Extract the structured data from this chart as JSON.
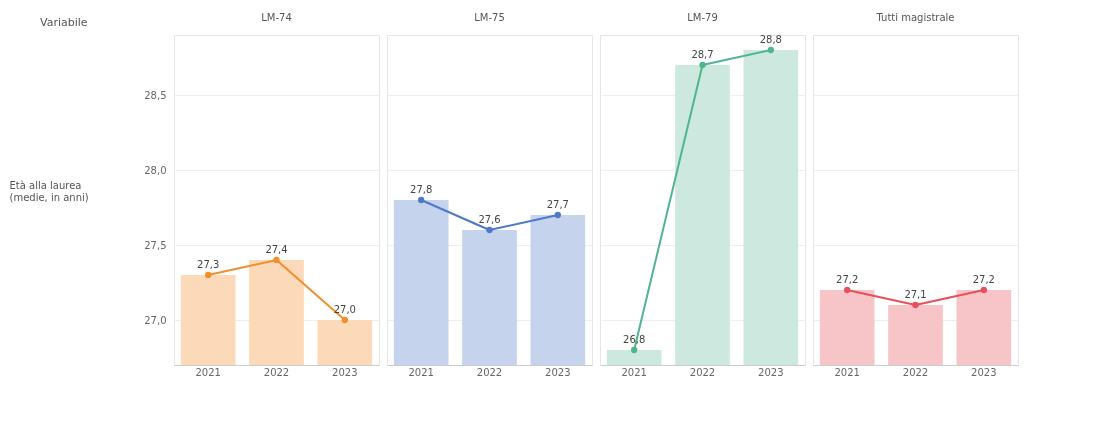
{
  "chart_data": [
    {
      "type": "bar",
      "title": "LM-74",
      "ylabel": "Età alla laurea (medie, in anni)",
      "annotations": [
        "Variabile"
      ],
      "categories": [
        "2021",
        "2022",
        "2023"
      ],
      "ylim": [
        26.7,
        28.9
      ],
      "yticks": [
        {
          "value": 27,
          "label": "27,0"
        },
        {
          "value": 27.5,
          "label": "27,5"
        },
        {
          "value": 28,
          "label": "28,0"
        },
        {
          "value": 28.5,
          "label": "28,5"
        }
      ],
      "grid": "y",
      "marker": "circle",
      "series": [
        {
          "color": "#fcd9b8",
          "values": [
            27.3,
            27.4,
            27.0
          ]
        },
        {
          "type": "line",
          "color": "#f28e2b",
          "values": [
            27.3,
            27.4,
            27.0
          ],
          "value_labels": [
            "27,3",
            "27,4",
            "27,0"
          ]
        }
      ]
    },
    {
      "type": "bar",
      "title": "LM-75",
      "categories": [
        "2021",
        "2022",
        "2023"
      ],
      "ylim": [
        26.7,
        28.9
      ],
      "yticks": [
        27,
        27.5,
        28,
        28.5
      ],
      "tick_labels": "x",
      "grid": "y",
      "marker": "circle",
      "series": [
        {
          "color": "#c5d3ec",
          "values": [
            27.8,
            27.6,
            27.7
          ]
        },
        {
          "type": "line",
          "color": "#4e79c9",
          "values": [
            27.8,
            27.6,
            27.7
          ],
          "value_labels": [
            "27,8",
            "27,6",
            "27,7"
          ]
        }
      ]
    },
    {
      "type": "bar",
      "title": "LM-79",
      "categories": [
        "2021",
        "2022",
        "2023"
      ],
      "ylim": [
        26.7,
        28.9
      ],
      "yticks": [
        27,
        27.5,
        28,
        28.5
      ],
      "tick_labels": "x",
      "grid": "y",
      "marker": "circle",
      "series": [
        {
          "color": "#cce8df",
          "values": [
            26.8,
            28.7,
            28.8
          ]
        },
        {
          "type": "line",
          "color": "#4fb58c",
          "values": [
            26.8,
            28.7,
            28.8
          ],
          "value_labels": [
            "26,8",
            "28,7",
            "28,8"
          ]
        }
      ]
    },
    {
      "type": "bar",
      "title": "Tutti magistrale",
      "categories": [
        "2021",
        "2022",
        "2023"
      ],
      "ylim": [
        26.7,
        28.9
      ],
      "yticks": [
        27,
        27.5,
        28,
        28.5
      ],
      "tick_labels": "x",
      "grid": "y",
      "marker": "circle",
      "series": [
        {
          "color": "#f7c5c8",
          "values": [
            27.2,
            27.1,
            27.2
          ]
        },
        {
          "type": "line",
          "color": "#e8505b",
          "values": [
            27.2,
            27.1,
            27.2
          ],
          "value_labels": [
            "27,2",
            "27,1",
            "27,2"
          ]
        }
      ]
    }
  ]
}
